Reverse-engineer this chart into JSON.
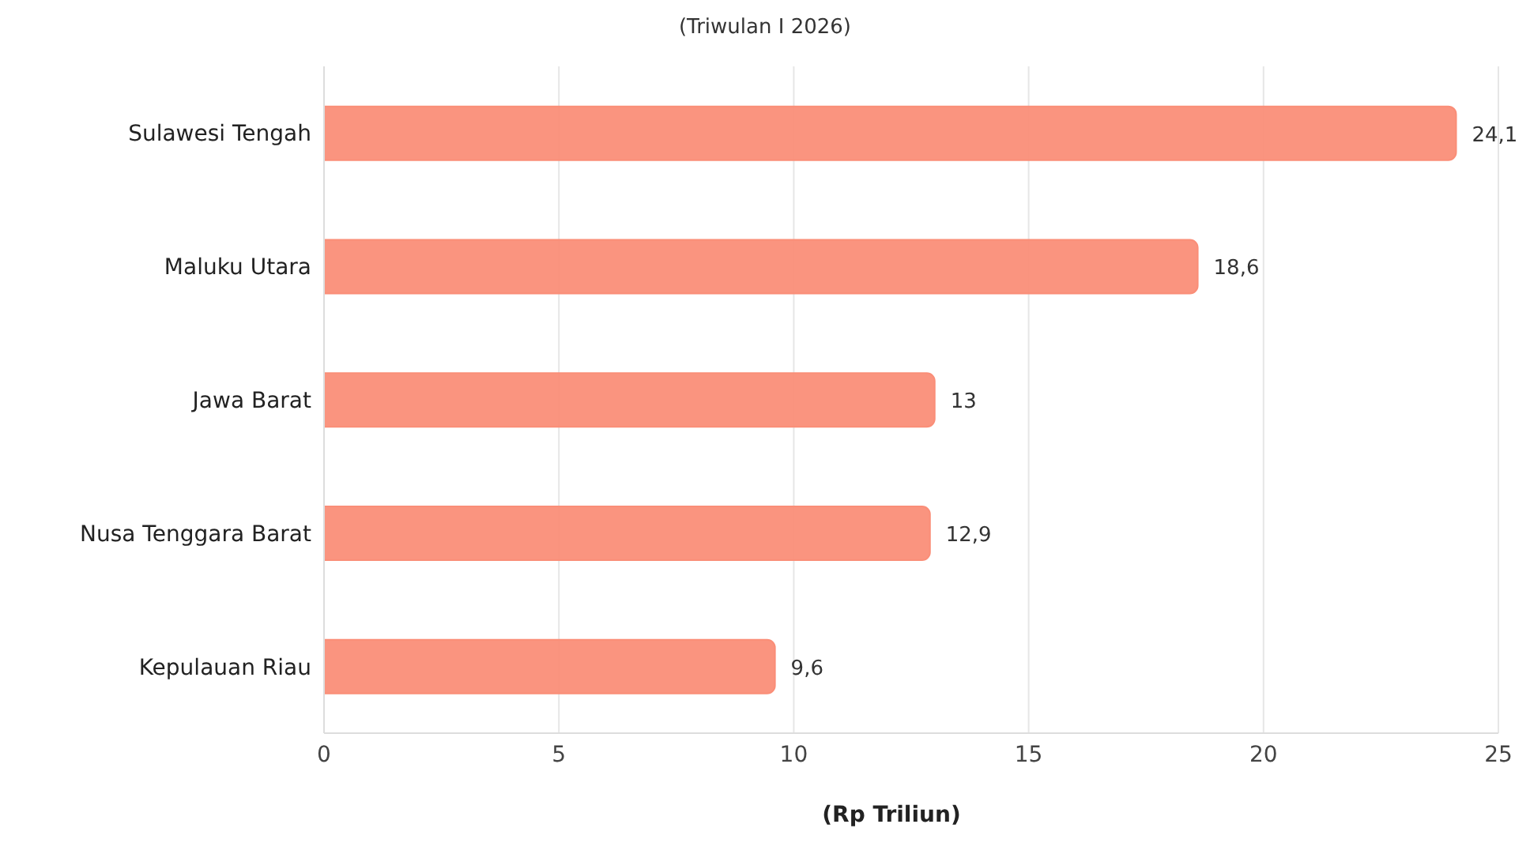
{
  "chart_data": {
    "type": "bar",
    "orientation": "horizontal",
    "subtitle": "(Triwulan I 2026)",
    "xlabel": "(Rp Triliun)",
    "categories": [
      "Sulawesi Tengah",
      "Maluku Utara",
      "Jawa Barat",
      "Nusa Tenggara Barat",
      "Kepulauan Riau"
    ],
    "values": [
      24.1,
      18.6,
      13,
      12.9,
      9.6
    ],
    "value_labels": [
      "24,1",
      "18,6",
      "13",
      "12,9",
      "9,6"
    ],
    "color": "#fa8e78",
    "xlim": [
      0,
      25
    ],
    "xticks": [
      0,
      5,
      10,
      15,
      20,
      25
    ],
    "grid": "x"
  }
}
